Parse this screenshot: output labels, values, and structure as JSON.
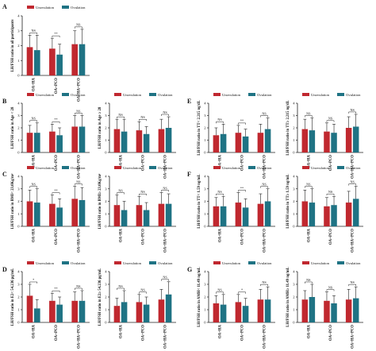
{
  "figure": {
    "colors": {
      "unovulation": "#c0282f",
      "ovulation": "#1f7384",
      "axis": "#222222"
    },
    "legend_labels": [
      "Unovulation",
      "Ovulation"
    ],
    "groups": [
      "OA+HA",
      "OA+PCO",
      "OA+HA+PCO"
    ]
  },
  "chart_data": [
    {
      "panel_letter": "A",
      "type": "bar",
      "ylabel": "LH/FSH ratio in all participants",
      "categories": [
        "OA+HA",
        "OA+PCO",
        "OA+HA+PCO"
      ],
      "ylim": [
        0,
        4
      ],
      "yticks": [
        0,
        1,
        2,
        3,
        4
      ],
      "series": [
        {
          "name": "Unovulation",
          "values": [
            1.9,
            1.8,
            2.1
          ],
          "errors": [
            0.8,
            0.7,
            0.9
          ]
        },
        {
          "name": "Ovulation",
          "values": [
            1.7,
            1.4,
            2.1
          ],
          "errors": [
            1.0,
            0.7,
            1.0
          ]
        }
      ],
      "annotations": [
        "NS",
        "**",
        "NS"
      ]
    },
    {
      "panel_letter": "B",
      "type": "bar",
      "ylabel": "LH/FSH ratio in Age < 28",
      "categories": [
        "OA+HA",
        "OA+PCO",
        "OA+HA+PCO"
      ],
      "ylim": [
        0,
        4
      ],
      "yticks": [
        0,
        1,
        2,
        3,
        4
      ],
      "series": [
        {
          "name": "Unovulation",
          "values": [
            1.6,
            1.7,
            2.1
          ],
          "errors": [
            0.6,
            0.6,
            0.9
          ]
        },
        {
          "name": "Ovulation",
          "values": [
            1.6,
            1.4,
            2.1
          ],
          "errors": [
            0.8,
            0.6,
            0.9
          ]
        }
      ],
      "annotations": [
        "NS",
        "**",
        "NS"
      ]
    },
    {
      "panel_letter": "",
      "type": "bar",
      "ylabel": "LH/FSH ratio in Age ≥ 28",
      "categories": [
        "OA+HA",
        "OA+PCO",
        "OA+HA+PCO"
      ],
      "ylim": [
        0,
        4
      ],
      "yticks": [
        0,
        1,
        2,
        3,
        4
      ],
      "series": [
        {
          "name": "Unovulation",
          "values": [
            1.9,
            1.8,
            1.9
          ],
          "errors": [
            0.8,
            0.7,
            0.8
          ]
        },
        {
          "name": "Ovulation",
          "values": [
            1.7,
            1.5,
            2.0
          ],
          "errors": [
            1.0,
            0.6,
            0.9
          ]
        }
      ],
      "annotations": [
        "NS",
        "NS",
        "NS"
      ]
    },
    {
      "panel_letter": "C",
      "type": "bar",
      "ylabel": "LH/FSH ratio in BMI< 23.0Kg/m²",
      "categories": [
        "OA+HA",
        "OA+PCO",
        "OA+HA+PCO"
      ],
      "ylim": [
        0,
        4
      ],
      "yticks": [
        0,
        1,
        2,
        3,
        4
      ],
      "series": [
        {
          "name": "Unovulation",
          "values": [
            2.0,
            1.8,
            2.2
          ],
          "errors": [
            0.9,
            0.7,
            1.0
          ]
        },
        {
          "name": "Ovulation",
          "values": [
            1.9,
            1.5,
            2.1
          ],
          "errors": [
            1.1,
            0.7,
            1.0
          ]
        }
      ],
      "annotations": [
        "NS",
        "**",
        "NS"
      ]
    },
    {
      "panel_letter": "",
      "type": "bar",
      "ylabel": "LH/FSH ratio in BMI≥ 23.0Kg/m²",
      "categories": [
        "OA+HA",
        "OA+PCO",
        "OA+HA+PCO"
      ],
      "ylim": [
        0,
        4
      ],
      "yticks": [
        0,
        1,
        2,
        3,
        4
      ],
      "series": [
        {
          "name": "Unovulation",
          "values": [
            1.7,
            1.7,
            1.8
          ],
          "errors": [
            0.8,
            0.7,
            0.9
          ]
        },
        {
          "name": "Ovulation",
          "values": [
            1.3,
            1.3,
            1.8
          ],
          "errors": [
            0.7,
            0.6,
            0.8
          ]
        }
      ],
      "annotations": [
        "NS",
        "NS",
        "NS"
      ]
    },
    {
      "panel_letter": "D",
      "type": "bar",
      "ylabel": "LH/FSH ratio in E2< 54.236 pg/mL",
      "categories": [
        "OA+HA",
        "OA+PCO",
        "OA+HA+PCO"
      ],
      "ylim": [
        0,
        4
      ],
      "yticks": [
        0,
        1,
        2,
        3,
        4
      ],
      "series": [
        {
          "name": "Unovulation",
          "values": [
            2.1,
            1.7,
            1.7
          ],
          "errors": [
            0.9,
            0.6,
            0.7
          ]
        },
        {
          "name": "Ovulation",
          "values": [
            1.1,
            1.4,
            1.7
          ],
          "errors": [
            0.7,
            0.6,
            0.8
          ]
        }
      ],
      "annotations": [
        "*",
        "**",
        "NS"
      ]
    },
    {
      "panel_letter": "",
      "type": "bar",
      "ylabel": "LH/FSH ratio in E2≥ 54.236 pg/mL",
      "categories": [
        "OA+HA",
        "OA+PCO",
        "OA+HA+PCO"
      ],
      "ylim": [
        0,
        4
      ],
      "yticks": [
        0,
        1,
        2,
        3,
        4
      ],
      "series": [
        {
          "name": "Unovulation",
          "values": [
            1.3,
            1.6,
            1.8
          ],
          "errors": [
            0.6,
            0.6,
            0.8
          ]
        },
        {
          "name": "Ovulation",
          "values": [
            1.6,
            1.4,
            2.2
          ],
          "errors": [
            0.9,
            0.6,
            1.0
          ]
        }
      ],
      "annotations": [
        "NS",
        "NS",
        "NS"
      ]
    },
    {
      "panel_letter": "E",
      "type": "bar",
      "ylabel": "LH/FSH ratio in TT< 2.215 ng/dL",
      "categories": [
        "OA+HA",
        "OA+PCO",
        "OA+HA+PCO"
      ],
      "ylim": [
        0,
        4
      ],
      "yticks": [
        0,
        1,
        2,
        3,
        4
      ],
      "series": [
        {
          "name": "Unovulation",
          "values": [
            1.4,
            1.6,
            1.6
          ],
          "errors": [
            0.6,
            0.6,
            0.7
          ]
        },
        {
          "name": "Ovulation",
          "values": [
            1.5,
            1.3,
            1.9
          ],
          "errors": [
            0.8,
            0.6,
            0.9
          ]
        }
      ],
      "annotations": [
        "NS",
        "**",
        "NS"
      ]
    },
    {
      "panel_letter": "",
      "type": "bar",
      "ylabel": "LH/FSH ratio in TT≥ 2.215 ng/dL",
      "categories": [
        "OA+HA",
        "OA+PCO",
        "OA+HA+PCO"
      ],
      "ylim": [
        0,
        4
      ],
      "yticks": [
        0,
        1,
        2,
        3,
        4
      ],
      "series": [
        {
          "name": "Unovulation",
          "values": [
            1.9,
            1.7,
            2.0
          ],
          "errors": [
            0.8,
            0.7,
            0.9
          ]
        },
        {
          "name": "Ovulation",
          "values": [
            1.8,
            1.6,
            2.1
          ],
          "errors": [
            1.0,
            0.7,
            1.0
          ]
        }
      ],
      "annotations": [
        "NS",
        "NS",
        "NS"
      ]
    },
    {
      "panel_letter": "F",
      "type": "bar",
      "ylabel": "LH/FSH ratio in TT< 1.59 ng/mL",
      "categories": [
        "OA+HA",
        "OA+PCO",
        "OA+HA+PCO"
      ],
      "ylim": [
        0,
        4
      ],
      "yticks": [
        0,
        1,
        2,
        3,
        4
      ],
      "series": [
        {
          "name": "Unovulation",
          "values": [
            1.6,
            1.9,
            1.8
          ],
          "errors": [
            0.7,
            0.8,
            0.8
          ]
        },
        {
          "name": "Ovulation",
          "values": [
            1.6,
            1.5,
            2.0
          ],
          "errors": [
            0.8,
            0.7,
            1.0
          ]
        }
      ],
      "annotations": [
        "NS",
        "**",
        "NS"
      ]
    },
    {
      "panel_letter": "",
      "type": "bar",
      "ylabel": "LH/FSH ratio in TT≥ 1.59 ng/mL",
      "categories": [
        "OA+HA",
        "OA+PCO",
        "OA+HA+PCO"
      ],
      "ylim": [
        0,
        4
      ],
      "yticks": [
        0,
        1,
        2,
        3,
        4
      ],
      "series": [
        {
          "name": "Unovulation",
          "values": [
            2.0,
            1.6,
            1.9
          ],
          "errors": [
            0.9,
            0.7,
            0.9
          ]
        },
        {
          "name": "Ovulation",
          "values": [
            1.9,
            1.7,
            2.2
          ],
          "errors": [
            1.1,
            0.7,
            1.0
          ]
        }
      ],
      "annotations": [
        "NS",
        "NS",
        "NS"
      ]
    },
    {
      "panel_letter": "G",
      "type": "bar",
      "ylabel": "LH/FSH ratio in AMH< 11.49 ng/mL",
      "categories": [
        "OA+HA",
        "OA+PCO",
        "OA+HA+PCO"
      ],
      "ylim": [
        0,
        4
      ],
      "yticks": [
        0,
        1,
        2,
        3,
        4
      ],
      "series": [
        {
          "name": "Unovulation",
          "values": [
            1.5,
            1.6,
            1.8
          ],
          "errors": [
            0.6,
            0.6,
            0.8
          ]
        },
        {
          "name": "Ovulation",
          "values": [
            1.4,
            1.3,
            1.8
          ],
          "errors": [
            0.8,
            0.6,
            1.0
          ]
        }
      ],
      "annotations": [
        "NS",
        "*",
        "NS"
      ]
    },
    {
      "panel_letter": "",
      "type": "bar",
      "ylabel": "LH/FSH ratio in AMH≥ 11.49 ng/mL",
      "categories": [
        "OA+HA",
        "OA+PCO",
        "OA+HA+PCO"
      ],
      "ylim": [
        0,
        4
      ],
      "yticks": [
        0,
        1,
        2,
        3,
        4
      ],
      "series": [
        {
          "name": "Unovulation",
          "values": [
            1.8,
            1.7,
            1.8
          ],
          "errors": [
            0.7,
            0.7,
            0.8
          ]
        },
        {
          "name": "Ovulation",
          "values": [
            2.0,
            1.5,
            1.9
          ],
          "errors": [
            1.0,
            0.6,
            0.9
          ]
        }
      ],
      "annotations": [
        "NS",
        "NS",
        "NS"
      ]
    }
  ]
}
